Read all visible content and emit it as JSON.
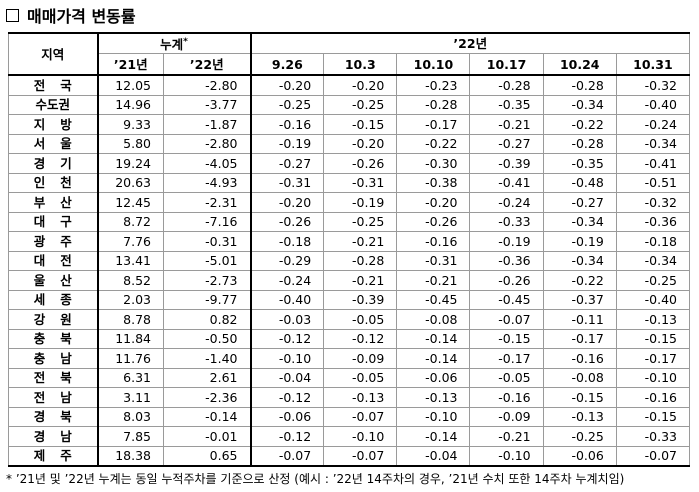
{
  "title": "매매가격 변동률",
  "table": {
    "header": {
      "region": "지역",
      "cumulative": "누계",
      "cumulative_mark": "*",
      "year_group": "’22년",
      "columns": [
        "’21년",
        "’22년",
        "9.26",
        "10.3",
        "10.10",
        "10.17",
        "10.24",
        "10.31"
      ]
    },
    "rows": [
      [
        "전국",
        "12.05",
        "-2.80",
        "-0.20",
        "-0.20",
        "-0.23",
        "-0.28",
        "-0.28",
        "-0.32"
      ],
      [
        "수도권",
        "14.96",
        "-3.77",
        "-0.25",
        "-0.25",
        "-0.28",
        "-0.35",
        "-0.34",
        "-0.40"
      ],
      [
        "지방",
        "9.33",
        "-1.87",
        "-0.16",
        "-0.15",
        "-0.17",
        "-0.21",
        "-0.22",
        "-0.24"
      ],
      [
        "서울",
        "5.80",
        "-2.80",
        "-0.19",
        "-0.20",
        "-0.22",
        "-0.27",
        "-0.28",
        "-0.34"
      ],
      [
        "경기",
        "19.24",
        "-4.05",
        "-0.27",
        "-0.26",
        "-0.30",
        "-0.39",
        "-0.35",
        "-0.41"
      ],
      [
        "인천",
        "20.63",
        "-4.93",
        "-0.31",
        "-0.31",
        "-0.38",
        "-0.41",
        "-0.48",
        "-0.51"
      ],
      [
        "부산",
        "12.45",
        "-2.31",
        "-0.20",
        "-0.19",
        "-0.20",
        "-0.24",
        "-0.27",
        "-0.32"
      ],
      [
        "대구",
        "8.72",
        "-7.16",
        "-0.26",
        "-0.25",
        "-0.26",
        "-0.33",
        "-0.34",
        "-0.36"
      ],
      [
        "광주",
        "7.76",
        "-0.31",
        "-0.18",
        "-0.21",
        "-0.16",
        "-0.19",
        "-0.19",
        "-0.18"
      ],
      [
        "대전",
        "13.41",
        "-5.01",
        "-0.29",
        "-0.28",
        "-0.31",
        "-0.36",
        "-0.34",
        "-0.34"
      ],
      [
        "울산",
        "8.52",
        "-2.73",
        "-0.24",
        "-0.21",
        "-0.21",
        "-0.26",
        "-0.22",
        "-0.25"
      ],
      [
        "세종",
        "2.03",
        "-9.77",
        "-0.40",
        "-0.39",
        "-0.45",
        "-0.45",
        "-0.37",
        "-0.40"
      ],
      [
        "강원",
        "8.78",
        "0.82",
        "-0.03",
        "-0.05",
        "-0.08",
        "-0.07",
        "-0.11",
        "-0.13"
      ],
      [
        "충북",
        "11.84",
        "-0.50",
        "-0.12",
        "-0.12",
        "-0.14",
        "-0.15",
        "-0.17",
        "-0.15"
      ],
      [
        "충남",
        "11.76",
        "-1.40",
        "-0.10",
        "-0.09",
        "-0.14",
        "-0.17",
        "-0.16",
        "-0.17"
      ],
      [
        "전북",
        "6.31",
        "2.61",
        "-0.04",
        "-0.05",
        "-0.06",
        "-0.05",
        "-0.08",
        "-0.10"
      ],
      [
        "전남",
        "3.11",
        "-2.36",
        "-0.12",
        "-0.13",
        "-0.13",
        "-0.16",
        "-0.15",
        "-0.16"
      ],
      [
        "경북",
        "8.03",
        "-0.14",
        "-0.06",
        "-0.07",
        "-0.10",
        "-0.09",
        "-0.13",
        "-0.15"
      ],
      [
        "경남",
        "7.85",
        "-0.01",
        "-0.12",
        "-0.10",
        "-0.14",
        "-0.21",
        "-0.25",
        "-0.33"
      ],
      [
        "제주",
        "18.38",
        "0.65",
        "-0.07",
        "-0.07",
        "-0.04",
        "-0.10",
        "-0.06",
        "-0.07"
      ]
    ]
  },
  "footnote": {
    "mark": "*",
    "text": "’21년 및 ’22년 누계는 동일 누적주차를 기준으로 산정 (예시 : ’22년 14주차의 경우, ’21년 수치 또한 14주차 누계치임)"
  }
}
